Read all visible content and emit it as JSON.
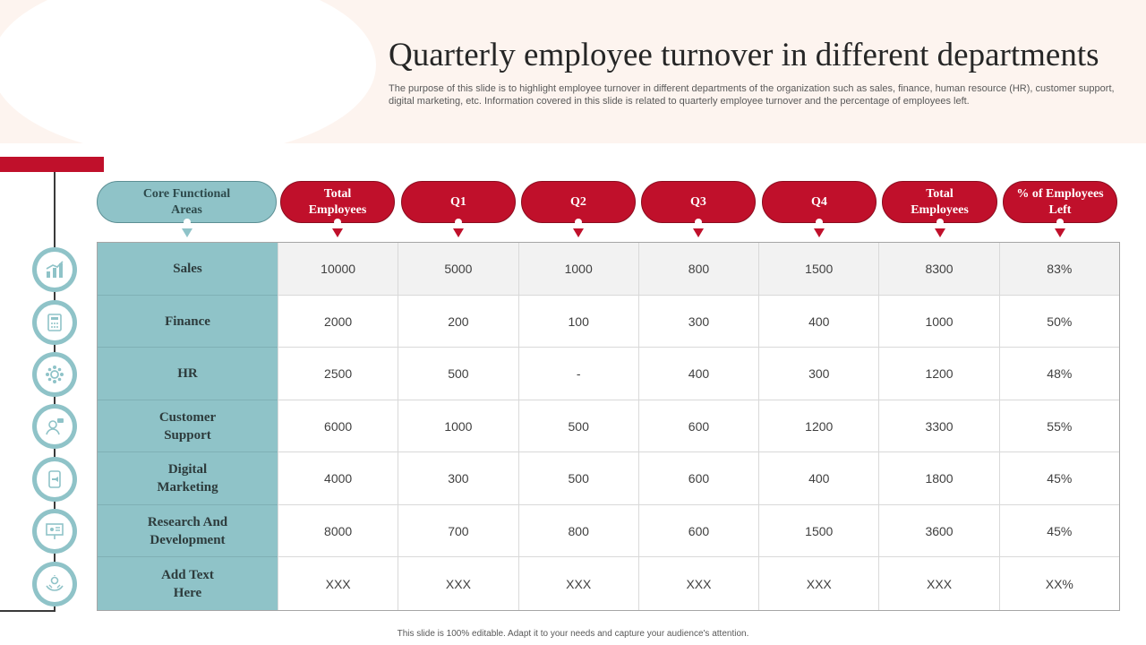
{
  "title": "Quarterly employee turnover in different departments",
  "subtitle": "The purpose of this slide is to highlight employee turnover in different departments of the organization such as sales, finance, human resource (HR), customer support, digital marketing, etc. Information covered in this slide is related to quarterly employee turnover and the percentage of employees left.",
  "table": {
    "headers": [
      "Core Functional Areas",
      "Total Employees",
      "Q1",
      "Q2",
      "Q3",
      "Q4",
      "Total Employees",
      "% of Employees Left"
    ],
    "rows": [
      {
        "area": "Sales",
        "icon": "chart-icon",
        "values": [
          "10000",
          "5000",
          "1000",
          "800",
          "1500",
          "8300",
          "83%"
        ]
      },
      {
        "area": "Finance",
        "icon": "calculator-icon",
        "values": [
          "2000",
          "200",
          "100",
          "300",
          "400",
          "1000",
          "50%"
        ]
      },
      {
        "area": "HR",
        "icon": "people-gear-icon",
        "values": [
          "2500",
          "500",
          "-",
          "400",
          "300",
          "1200",
          "48%"
        ]
      },
      {
        "area": "Customer Support",
        "icon": "support-icon",
        "values": [
          "6000",
          "1000",
          "500",
          "600",
          "1200",
          "3300",
          "55%"
        ]
      },
      {
        "area": "Digital Marketing",
        "icon": "mobile-marketing-icon",
        "values": [
          "4000",
          "300",
          "500",
          "600",
          "400",
          "1800",
          "45%"
        ]
      },
      {
        "area": "Research And Development",
        "icon": "presentation-icon",
        "values": [
          "8000",
          "700",
          "800",
          "600",
          "1500",
          "3600",
          "45%"
        ]
      },
      {
        "area": "Add Text Here",
        "icon": "hands-idea-icon",
        "values": [
          "XXX",
          "XXX",
          "XXX",
          "XXX",
          "XXX",
          "XXX",
          "XX%"
        ]
      }
    ]
  },
  "footer": "This slide is 100% editable. Adapt it to your needs and capture your audience's attention.",
  "colors": {
    "accent_red": "#c0102b",
    "teal": "#8fc3c8",
    "band": "#fdf4ef"
  }
}
